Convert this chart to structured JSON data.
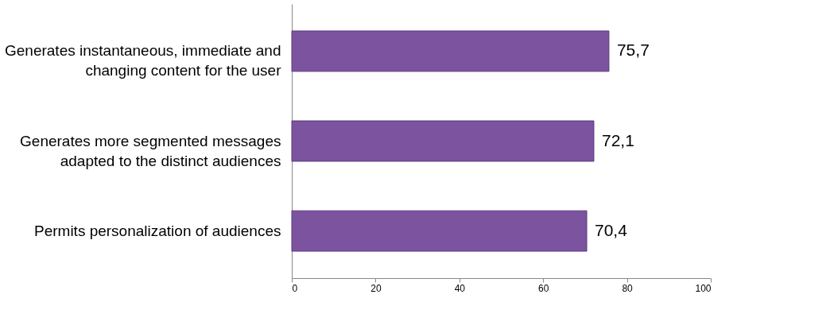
{
  "chart_data": {
    "type": "bar",
    "orientation": "horizontal",
    "categories": [
      "Generates instantaneous, immediate and changing content for the user",
      "Generates more segmented messages adapted to the distinct audiences",
      "Permits personalization of audiences"
    ],
    "values": [
      75.7,
      72.1,
      70.4
    ],
    "value_labels": [
      "75,7",
      "72,1",
      "70,4"
    ],
    "color": "#7b539f",
    "xlim": [
      0,
      100
    ],
    "xticks": [
      0,
      20,
      40,
      60,
      80,
      100
    ],
    "grid": false
  }
}
